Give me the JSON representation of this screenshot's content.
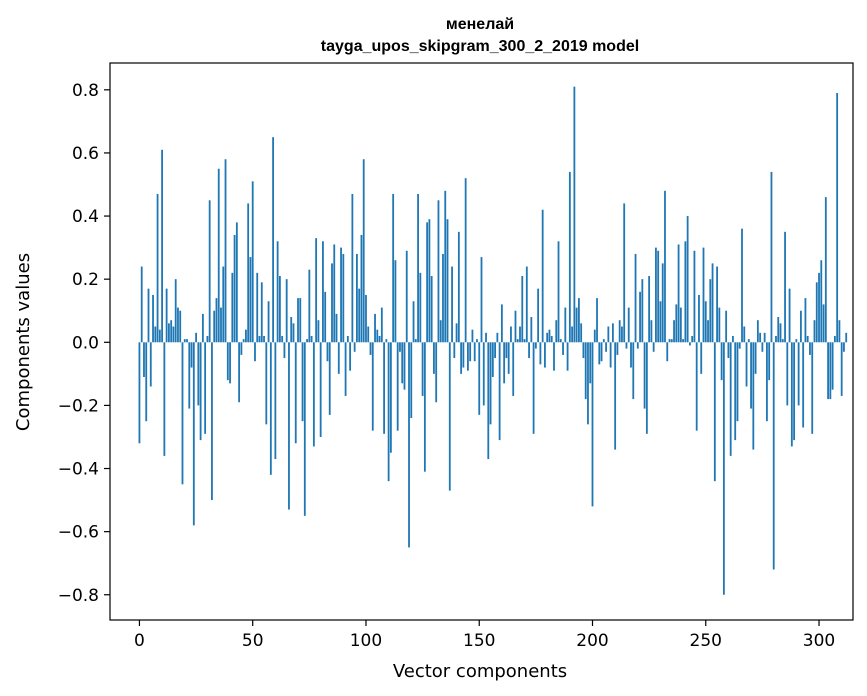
{
  "chart_data": {
    "type": "bar",
    "title_line1": "менелай",
    "title_line2": "tayga_upos_skipgram_300_2_2019 model",
    "xlabel": "Vector components",
    "ylabel": "Components values",
    "xlim": [
      -13,
      315
    ],
    "ylim": [
      -0.88,
      0.885
    ],
    "xticks": [
      0,
      50,
      100,
      150,
      200,
      250,
      300
    ],
    "xtick_labels": [
      "0",
      "50",
      "100",
      "150",
      "200",
      "250",
      "300"
    ],
    "yticks": [
      -0.8,
      -0.6,
      -0.4,
      -0.2,
      0.0,
      0.2,
      0.4,
      0.6,
      0.8
    ],
    "ytick_labels": [
      "−0.8",
      "−0.6",
      "−0.4",
      "−0.2",
      "0.0",
      "0.2",
      "0.4",
      "0.6",
      "0.8"
    ],
    "bar_color": "#1f77b4",
    "grid": false,
    "values": [
      -0.32,
      0.24,
      -0.11,
      -0.25,
      0.17,
      -0.14,
      0.15,
      0.05,
      0.47,
      0.04,
      0.61,
      -0.36,
      0.17,
      0.06,
      0.07,
      0.05,
      0.2,
      0.11,
      0.1,
      -0.45,
      0.01,
      0.01,
      -0.21,
      -0.08,
      -0.58,
      0.03,
      -0.2,
      -0.31,
      0.09,
      -0.29,
      0.02,
      0.45,
      -0.5,
      0.1,
      0.14,
      0.55,
      0.11,
      0.24,
      0.58,
      -0.12,
      -0.13,
      0.22,
      0.34,
      0.38,
      -0.19,
      -0.04,
      0.01,
      0.04,
      0.44,
      0.27,
      0.51,
      -0.06,
      0.22,
      0.02,
      0.19,
      0.02,
      -0.26,
      0.13,
      -0.42,
      0.65,
      -0.37,
      0.32,
      0.21,
      0.02,
      -0.05,
      0.2,
      -0.53,
      0.08,
      0.06,
      -0.32,
      0.14,
      0.14,
      -0.25,
      -0.55,
      0.01,
      0.23,
      0.02,
      -0.33,
      0.33,
      0.07,
      -0.3,
      0.32,
      0.16,
      -0.06,
      -0.23,
      0.25,
      0.31,
      0.09,
      -0.1,
      0.3,
      0.28,
      -0.17,
      0.02,
      -0.09,
      0.47,
      -0.03,
      0.28,
      0.17,
      0.34,
      0.58,
      0.15,
      0.05,
      -0.04,
      -0.28,
      0.09,
      0.04,
      0.02,
      0.11,
      -0.29,
      0.01,
      -0.44,
      -0.35,
      0.47,
      0.26,
      -0.28,
      -0.03,
      -0.13,
      -0.15,
      0.29,
      -0.65,
      -0.24,
      0.13,
      0.01,
      0.47,
      0.22,
      -0.17,
      -0.41,
      0.38,
      0.39,
      0.21,
      -0.1,
      -0.19,
      0.45,
      0.07,
      0.28,
      0.48,
      0.39,
      -0.47,
      0.24,
      -0.05,
      0.06,
      0.35,
      -0.1,
      -0.08,
      0.52,
      -0.09,
      -0.06,
      0.04,
      -0.06,
      0.01,
      -0.23,
      0.27,
      -0.2,
      0.03,
      -0.37,
      -0.26,
      -0.11,
      -0.05,
      0.03,
      -0.31,
      0.12,
      -0.13,
      -0.05,
      -0.1,
      0.05,
      -0.17,
      0.1,
      0.01,
      0.05,
      0.21,
      0.01,
      0.24,
      -0.05,
      0.08,
      -0.29,
      -0.02,
      0.17,
      -0.07,
      0.42,
      -0.08,
      0.03,
      0.04,
      0.02,
      -0.09,
      0.07,
      0.32,
      0.01,
      -0.04,
      0.11,
      -0.09,
      0.54,
      0.05,
      0.81,
      0.11,
      0.14,
      0.06,
      -0.05,
      -0.18,
      -0.26,
      -0.13,
      -0.52,
      0.04,
      0.14,
      -0.07,
      -0.06,
      0.01,
      -0.03,
      0.05,
      -0.08,
      0.06,
      -0.34,
      -0.04,
      0.07,
      0.05,
      0.44,
      -0.02,
      0.11,
      -0.08,
      -0.18,
      0.28,
      -0.02,
      0.16,
      0.2,
      -0.21,
      -0.29,
      0.21,
      0.07,
      -0.03,
      0.3,
      0.29,
      0.13,
      0.25,
      0.48,
      -0.06,
      0.01,
      0.01,
      0.07,
      0.12,
      0.31,
      0.11,
      0.01,
      0.32,
      0.4,
      -0.01,
      0.02,
      0.29,
      -0.28,
      0.15,
      -0.1,
      0.3,
      0.13,
      0.07,
      0.2,
      0.25,
      -0.44,
      0.24,
      0.11,
      -0.12,
      -0.8,
      0.1,
      -0.05,
      -0.36,
      0.02,
      -0.31,
      -0.25,
      -0.02,
      0.36,
      0.05,
      -0.14,
      0.01,
      -0.21,
      -0.34,
      -0.1,
      0.07,
      0.03,
      -0.03,
      0.03,
      -0.25,
      -0.12,
      0.54,
      -0.72,
      0.02,
      0.08,
      0.06,
      0.01,
      0.35,
      -0.2,
      0.17,
      -0.33,
      -0.31,
      0.01,
      -0.2,
      0.1,
      -0.27,
      0.14,
      0.02,
      -0.04,
      -0.29,
      0.07,
      0.19,
      0.22,
      0.26,
      0.12,
      0.46,
      -0.18,
      -0.18,
      -0.15,
      0.02,
      0.79,
      0.07,
      -0.17,
      -0.03,
      0.03
    ]
  }
}
